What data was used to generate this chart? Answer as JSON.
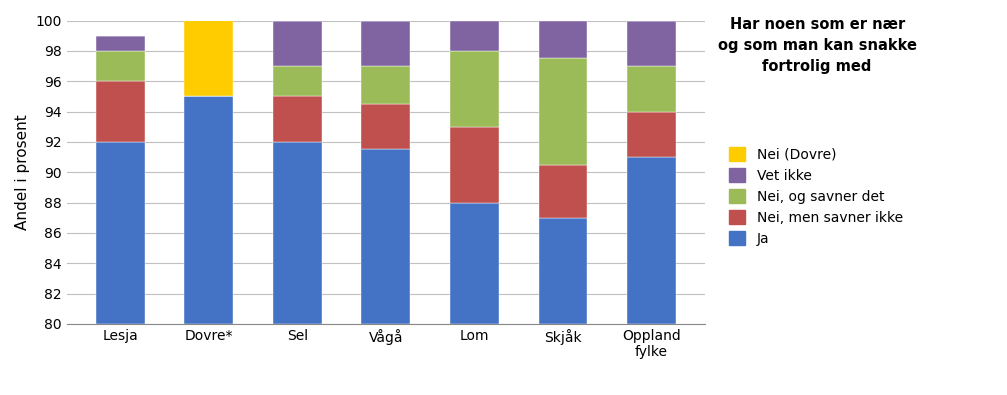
{
  "categories": [
    "Lesja",
    "Dovre*",
    "Sel",
    "Vågå",
    "Lom",
    "Skjåk",
    "Oppland\nfylke"
  ],
  "series": {
    "Ja": [
      12,
      15,
      12,
      11.5,
      8,
      7,
      11
    ],
    "Nei, men savner ikke": [
      4,
      0,
      3,
      3,
      5,
      3.5,
      3
    ],
    "Nei, og savner det": [
      2,
      0,
      2,
      2.5,
      5,
      7,
      3
    ],
    "Vet ikke": [
      1,
      0,
      3,
      3,
      2,
      2.5,
      3
    ],
    "Nei (Dovre)": [
      0,
      5,
      0,
      0,
      0,
      0,
      0
    ]
  },
  "colors": {
    "Ja": "#4472C4",
    "Nei, men savner ikke": "#C0504D",
    "Nei, og savner det": "#9BBB59",
    "Vet ikke": "#8064A2",
    "Nei (Dovre)": "#FFCC00"
  },
  "ylabel": "Andel i prosent",
  "ylim": [
    80,
    100
  ],
  "yticks": [
    80,
    82,
    84,
    86,
    88,
    90,
    92,
    94,
    96,
    98,
    100
  ],
  "title": "Har noen som er nær\nog som man kan snakke\nfortrolig med",
  "legend_order": [
    "Nei (Dovre)",
    "Vet ikke",
    "Nei, og savner det",
    "Nei, men savner ikke",
    "Ja"
  ],
  "background_color": "#FFFFFF",
  "grid_color": "#C0C0C0"
}
